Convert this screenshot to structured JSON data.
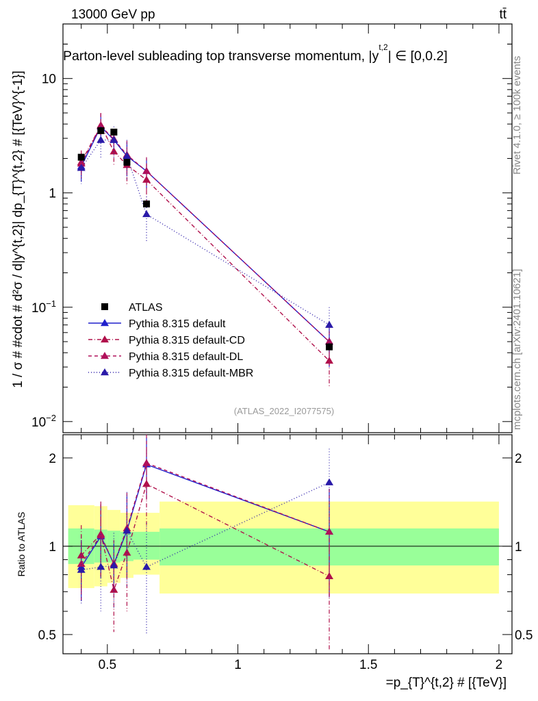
{
  "header": {
    "energy_label": "13000 GeV pp",
    "process_label": "tt̄",
    "plot_title": "Parton-level subleading top transverse momentum, |y",
    "title_sup": "t,2",
    "title_suffix": "| ∈ [0,0.2]",
    "rivet_label": "Rivet 4.1.0, ≥ 100k events",
    "mcplots_label": "mcplots.cern.ch [arXiv:2401.10621]",
    "analysis_label": "(ATLAS_2022_I2077575)"
  },
  "colors": {
    "atlas": "#000000",
    "default": "#1f1fcc",
    "cd": "#b0104a",
    "dl": "#b0105a",
    "mbr": "#2a1aa8",
    "band_inner": "#99ff99",
    "band_outer": "#ffff99"
  },
  "chart_data": [
    {
      "type": "line",
      "scale": "log",
      "ylabel": "1 / σ # #cdot # d²σ / d|y^{t,2}| dp_{T}^{t,2} # [{TeV}^{-1}]",
      "ylim": [
        0.008,
        30
      ],
      "xlim": [
        0.33,
        2.05
      ],
      "y_ticks": [
        {
          "value": 0.01,
          "mantissa": "10",
          "exponent": "−2"
        },
        {
          "value": 0.1,
          "mantissa": "10",
          "exponent": "−1"
        },
        {
          "value": 1,
          "mantissa": "1",
          "exponent": ""
        },
        {
          "value": 10,
          "mantissa": "10",
          "exponent": ""
        }
      ],
      "legend": [
        {
          "key": "atlas",
          "label": "ATLAS"
        },
        {
          "key": "default",
          "label": "Pythia 8.315 default"
        },
        {
          "key": "cd",
          "label": "Pythia 8.315 default-CD"
        },
        {
          "key": "dl",
          "label": "Pythia 8.315 default-DL"
        },
        {
          "key": "mbr",
          "label": "Pythia 8.315 default-MBR"
        }
      ],
      "atlas": {
        "x": [
          0.4,
          0.475,
          0.525,
          0.575,
          0.65,
          1.35
        ],
        "y": [
          2.05,
          3.5,
          3.4,
          1.85,
          0.8,
          0.045
        ]
      },
      "series": [
        {
          "key": "default",
          "name": "Pythia 8.315 default",
          "dash": "",
          "x": [
            0.4,
            0.475,
            0.525,
            0.575,
            0.65,
            1.35
          ],
          "y": [
            1.7,
            3.8,
            2.9,
            2.1,
            1.55,
            0.05
          ],
          "err": [
            0.45,
            1.1,
            0.5,
            0.7,
            0.45,
            0.02
          ]
        },
        {
          "key": "cd",
          "name": "Pythia 8.315 default-CD",
          "dash": "6,3,1,3",
          "x": [
            0.4,
            0.475,
            0.525,
            0.575,
            0.65,
            1.35
          ],
          "y": [
            1.85,
            3.9,
            2.3,
            1.75,
            1.3,
            0.034
          ],
          "err": [
            0.5,
            1.1,
            0.6,
            0.6,
            0.5,
            0.014
          ]
        },
        {
          "key": "dl",
          "name": "Pythia 8.315 default-DL",
          "dash": "5,4",
          "x": [
            0.4,
            0.475,
            0.525,
            0.575,
            0.65,
            1.35
          ],
          "y": [
            1.8,
            3.85,
            2.95,
            2.15,
            1.55,
            0.05
          ],
          "err": [
            0.45,
            1.1,
            0.6,
            0.7,
            0.5,
            0.02
          ]
        },
        {
          "key": "mbr",
          "name": "Pythia 8.315 default-MBR",
          "dash": "1,3",
          "x": [
            0.4,
            0.475,
            0.525,
            0.575,
            0.65,
            1.35
          ],
          "y": [
            1.65,
            2.9,
            2.9,
            2.1,
            0.65,
            0.07
          ],
          "err": [
            0.45,
            0.9,
            0.9,
            0.8,
            0.28,
            0.03
          ]
        }
      ]
    },
    {
      "type": "line",
      "scale": "log",
      "ylabel": "Ratio to ATLAS",
      "xlabel": "=p_{T}^{t,2} # [{TeV}]",
      "ylim": [
        0.43,
        2.4
      ],
      "xlim": [
        0.33,
        2.05
      ],
      "y_ticks": [
        0.5,
        1,
        2
      ],
      "y_tick_labels": [
        "0.5",
        "1",
        "2"
      ],
      "x_ticks": [
        0.5,
        1,
        1.5,
        2
      ],
      "x_tick_labels": [
        "0.5",
        "1",
        "1.5",
        "2"
      ],
      "bands": [
        {
          "x0": 0.35,
          "x1": 0.45,
          "inner": [
            0.87,
            1.15
          ],
          "outer": [
            0.72,
            1.38
          ]
        },
        {
          "x0": 0.45,
          "x1": 0.5,
          "inner": [
            0.88,
            1.14
          ],
          "outer": [
            0.73,
            1.37
          ]
        },
        {
          "x0": 0.5,
          "x1": 0.55,
          "inner": [
            0.88,
            1.13
          ],
          "outer": [
            0.75,
            1.33
          ]
        },
        {
          "x0": 0.55,
          "x1": 0.6,
          "inner": [
            0.89,
            1.12
          ],
          "outer": [
            0.78,
            1.3
          ]
        },
        {
          "x0": 0.6,
          "x1": 0.7,
          "inner": [
            0.9,
            1.12
          ],
          "outer": [
            0.8,
            1.3
          ]
        },
        {
          "x0": 0.7,
          "x1": 2.0,
          "inner": [
            0.86,
            1.15
          ],
          "outer": [
            0.69,
            1.42
          ]
        }
      ],
      "series": [
        {
          "key": "default",
          "name": "Pythia 8.315 default",
          "dash": "",
          "x": [
            0.4,
            0.475,
            0.525,
            0.575,
            0.65,
            1.35
          ],
          "y": [
            0.85,
            1.08,
            0.87,
            1.13,
            1.9,
            1.12
          ],
          "err": [
            0.2,
            0.3,
            0.15,
            0.35,
            0.45,
            0.45
          ]
        },
        {
          "key": "cd",
          "name": "Pythia 8.315 default-CD",
          "dash": "6,3,1,3",
          "x": [
            0.4,
            0.475,
            0.525,
            0.575,
            0.65,
            1.35
          ],
          "y": [
            0.93,
            1.1,
            0.71,
            0.95,
            1.63,
            0.79
          ],
          "err": [
            0.25,
            0.32,
            0.2,
            0.35,
            0.5,
            0.35
          ]
        },
        {
          "key": "dl",
          "name": "Pythia 8.315 default-DL",
          "dash": "5,4",
          "x": [
            0.4,
            0.475,
            0.525,
            0.575,
            0.65,
            1.35
          ],
          "y": [
            0.87,
            1.09,
            0.87,
            1.15,
            1.92,
            1.12
          ],
          "err": [
            0.22,
            0.3,
            0.18,
            0.37,
            0.5,
            0.45
          ]
        },
        {
          "key": "mbr",
          "name": "Pythia 8.315 default-MBR",
          "dash": "1,3",
          "x": [
            0.4,
            0.475,
            0.525,
            0.575,
            0.65,
            1.35
          ],
          "y": [
            0.83,
            0.85,
            0.86,
            1.13,
            0.85,
            1.65
          ],
          "err": [
            0.2,
            0.25,
            0.25,
            0.4,
            0.35,
            0.5
          ]
        }
      ]
    }
  ]
}
